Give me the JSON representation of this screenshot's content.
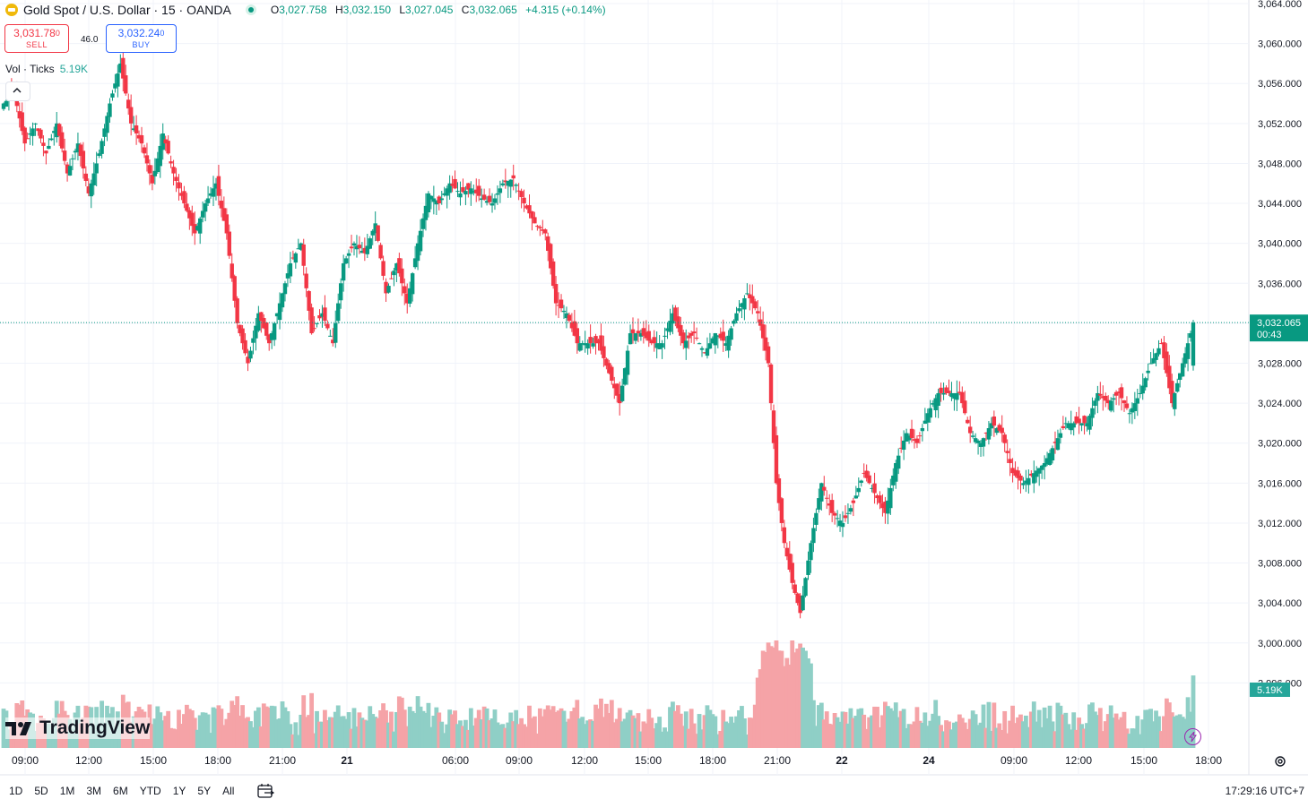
{
  "header": {
    "symbol": "Gold Spot / U.S. Dollar · 15 · OANDA",
    "ohlc": [
      {
        "k": "O",
        "v": "3,027.758"
      },
      {
        "k": "H",
        "v": "3,032.150"
      },
      {
        "k": "L",
        "v": "3,027.045"
      },
      {
        "k": "C",
        "v": "3,032.065"
      }
    ],
    "change": "+4.315 (+0.14%)"
  },
  "trade": {
    "sell_price": "3,031.78",
    "sell_sup": "0",
    "sell_label": "SELL",
    "spread": "46.0",
    "buy_price": "3,032.24",
    "buy_sup": "0",
    "buy_label": "BUY"
  },
  "volume_legend": {
    "label": "Vol · Ticks",
    "value": "5.19K"
  },
  "price_tag": {
    "price": "3,032.065",
    "countdown": "00:43"
  },
  "volume_tag": "5.19K",
  "brand": "TradingView",
  "ranges": [
    "1D",
    "5D",
    "1M",
    "3M",
    "6M",
    "YTD",
    "1Y",
    "5Y",
    "All"
  ],
  "clock": "17:29:16 UTC+7",
  "colors": {
    "up": "#089981",
    "down": "#f23645",
    "vol_up": "#8fcfc6",
    "vol_down": "#f5a3a7",
    "price_line": "#089981"
  },
  "icons": [
    "gold-coin-icon",
    "market-open-icon",
    "chevron-up-icon",
    "tradingview-logo-icon",
    "calendar-range-icon",
    "gear-icon",
    "lightning-icon"
  ],
  "chart_data": {
    "type": "candlestick",
    "interval": "15",
    "y_range": [
      2992,
      3064
    ],
    "y_ticks": [
      "3,064.000",
      "3,060.000",
      "3,056.000",
      "3,052.000",
      "3,048.000",
      "3,044.000",
      "3,040.000",
      "3,036.000",
      "3,032.000",
      "3,028.000",
      "3,024.000",
      "3,020.000",
      "3,016.000",
      "3,012.000",
      "3,008.000",
      "3,004.000",
      "3,000.000",
      "2,996.000"
    ],
    "x_ticks": [
      "09:00",
      "12:00",
      "15:00",
      "18:00",
      "21:00",
      "21",
      "06:00",
      "09:00",
      "12:00",
      "15:00",
      "18:00",
      "21:00",
      "22",
      "24",
      "09:00",
      "12:00",
      "15:00",
      "18:00"
    ],
    "last_price": 3032.065,
    "path": [
      [
        0,
        3054
      ],
      [
        4,
        3055
      ],
      [
        8,
        3050
      ],
      [
        12,
        3052
      ],
      [
        16,
        3049
      ],
      [
        20,
        3052
      ],
      [
        24,
        3047
      ],
      [
        28,
        3050
      ],
      [
        32,
        3045
      ],
      [
        36,
        3049
      ],
      [
        40,
        3054
      ],
      [
        44,
        3058
      ],
      [
        48,
        3052
      ],
      [
        52,
        3050
      ],
      [
        56,
        3046
      ],
      [
        60,
        3051
      ],
      [
        64,
        3047
      ],
      [
        68,
        3044
      ],
      [
        72,
        3041
      ],
      [
        76,
        3044
      ],
      [
        80,
        3046
      ],
      [
        84,
        3041
      ],
      [
        88,
        3032
      ],
      [
        92,
        3028
      ],
      [
        96,
        3033
      ],
      [
        100,
        3030
      ],
      [
        104,
        3034
      ],
      [
        108,
        3038
      ],
      [
        112,
        3040
      ],
      [
        116,
        3031
      ],
      [
        120,
        3033
      ],
      [
        124,
        3030
      ],
      [
        128,
        3038
      ],
      [
        132,
        3040
      ],
      [
        136,
        3039
      ],
      [
        140,
        3042
      ],
      [
        144,
        3035
      ],
      [
        148,
        3038
      ],
      [
        152,
        3034
      ],
      [
        156,
        3040
      ],
      [
        160,
        3045
      ],
      [
        164,
        3044
      ],
      [
        168,
        3046
      ],
      [
        172,
        3045
      ],
      [
        176,
        3045.5
      ],
      [
        180,
        3044.5
      ],
      [
        184,
        3044
      ],
      [
        188,
        3046
      ],
      [
        192,
        3046.5
      ],
      [
        196,
        3044
      ],
      [
        200,
        3042
      ],
      [
        204,
        3041
      ],
      [
        208,
        3034
      ],
      [
        212,
        3033
      ],
      [
        216,
        3030
      ],
      [
        220,
        3030
      ],
      [
        224,
        3030
      ],
      [
        228,
        3027
      ],
      [
        232,
        3024
      ],
      [
        236,
        3031
      ],
      [
        240,
        3031
      ],
      [
        244,
        3030
      ],
      [
        248,
        3030
      ],
      [
        252,
        3033
      ],
      [
        256,
        3030
      ],
      [
        260,
        3031
      ],
      [
        264,
        3029
      ],
      [
        268,
        3031
      ],
      [
        272,
        3030
      ],
      [
        276,
        3033
      ],
      [
        280,
        3035
      ],
      [
        284,
        3033
      ],
      [
        288,
        3028
      ],
      [
        291,
        3016
      ],
      [
        294,
        3010
      ],
      [
        297,
        3006
      ],
      [
        300,
        3003
      ],
      [
        304,
        3010
      ],
      [
        308,
        3016
      ],
      [
        312,
        3013
      ],
      [
        316,
        3012
      ],
      [
        320,
        3014
      ],
      [
        324,
        3017
      ],
      [
        328,
        3015
      ],
      [
        332,
        3013
      ],
      [
        336,
        3018
      ],
      [
        340,
        3021
      ],
      [
        344,
        3020
      ],
      [
        348,
        3023
      ],
      [
        352,
        3025
      ],
      [
        356,
        3025
      ],
      [
        360,
        3025
      ],
      [
        364,
        3021
      ],
      [
        368,
        3020
      ],
      [
        372,
        3022
      ],
      [
        376,
        3021
      ],
      [
        380,
        3017
      ],
      [
        384,
        3016
      ],
      [
        388,
        3017
      ],
      [
        392,
        3018
      ],
      [
        396,
        3020
      ],
      [
        400,
        3022
      ],
      [
        404,
        3022
      ],
      [
        408,
        3022
      ],
      [
        412,
        3025
      ],
      [
        416,
        3024
      ],
      [
        420,
        3025
      ],
      [
        424,
        3023
      ],
      [
        428,
        3025
      ],
      [
        432,
        3028
      ],
      [
        436,
        3030
      ],
      [
        440,
        3024
      ],
      [
        444,
        3028
      ],
      [
        448,
        3032
      ]
    ]
  }
}
